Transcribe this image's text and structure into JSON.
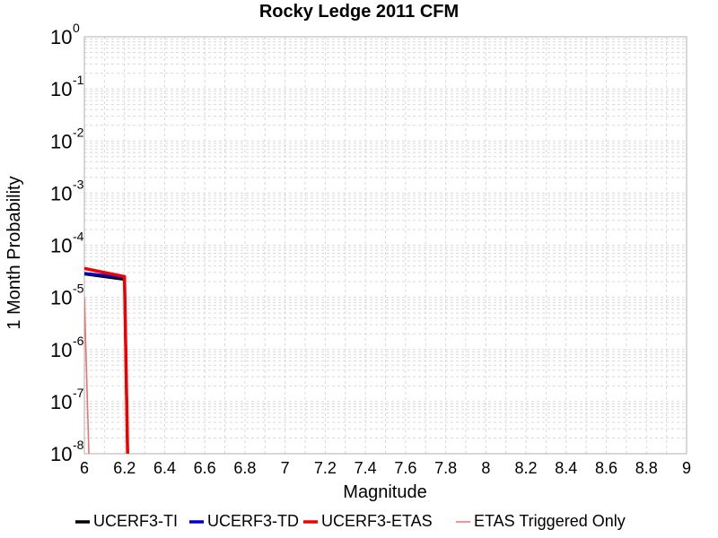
{
  "chart_data": {
    "type": "line",
    "title": "Rocky Ledge 2011 CFM",
    "xlabel": "Magnitude",
    "ylabel": "1 Month Probability",
    "xlim": [
      6,
      9
    ],
    "ylim": [
      1e-08,
      1
    ],
    "y_scale": "log",
    "grid": true,
    "legend_position": "bottom",
    "x_ticks": [
      "6",
      "6.2",
      "6.4",
      "6.6",
      "6.8",
      "7",
      "7.2",
      "7.4",
      "7.6",
      "7.8",
      "8",
      "8.2",
      "8.4",
      "8.6",
      "8.8",
      "9"
    ],
    "y_ticks": [
      {
        "base": "10",
        "exp": "0"
      },
      {
        "base": "10",
        "exp": "-1"
      },
      {
        "base": "10",
        "exp": "-2"
      },
      {
        "base": "10",
        "exp": "-3"
      },
      {
        "base": "10",
        "exp": "-4"
      },
      {
        "base": "10",
        "exp": "-5"
      },
      {
        "base": "10",
        "exp": "-6"
      },
      {
        "base": "10",
        "exp": "-7"
      },
      {
        "base": "10",
        "exp": "-8"
      }
    ],
    "series": [
      {
        "name": "UCERF3-TI",
        "color": "#000000",
        "x": [
          6.0,
          6.2,
          6.22
        ],
        "y": [
          2.8e-05,
          2.2e-05,
          1e-09
        ]
      },
      {
        "name": "UCERF3-TD",
        "color": "#0000cc",
        "x": [
          6.0,
          6.2,
          6.22
        ],
        "y": [
          2.9e-05,
          2.4e-05,
          1e-09
        ]
      },
      {
        "name": "UCERF3-ETAS",
        "color": "#ee0000",
        "x": [
          6.0,
          6.2,
          6.22
        ],
        "y": [
          3.6e-05,
          2.5e-05,
          1e-09
        ]
      },
      {
        "name": "ETAS Triggered Only",
        "color": "#f07070",
        "x": [
          6.0,
          6.03
        ],
        "y": [
          1e-05,
          1e-09
        ]
      }
    ]
  }
}
